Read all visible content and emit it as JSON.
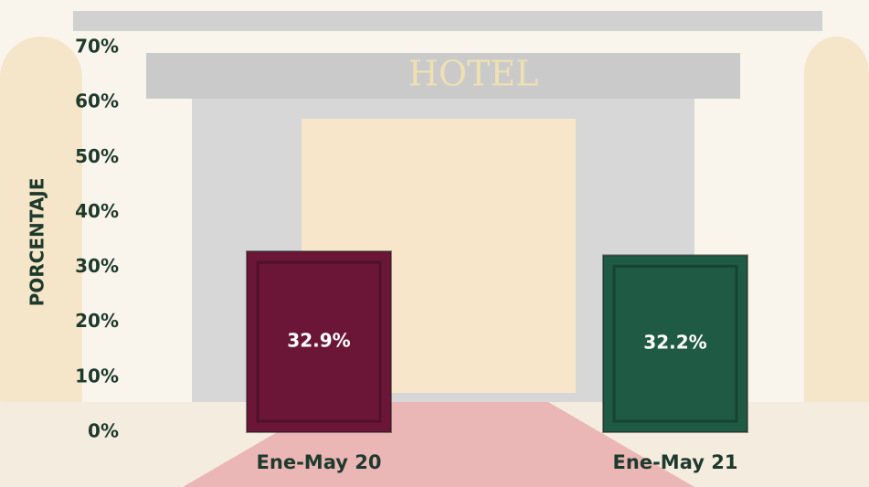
{
  "background": {
    "sign": "HOTEL"
  },
  "chart_data": {
    "type": "bar",
    "ylabel": "PORCENTAJE",
    "categories": [
      "Ene-May 20",
      "Ene-May 21"
    ],
    "values": [
      32.9,
      32.2
    ],
    "value_labels": [
      "32.9%",
      "32.2%"
    ],
    "colors": [
      "#6b1636",
      "#1f5a45"
    ],
    "ylim": [
      0,
      70
    ],
    "yticks": [
      {
        "value": 0,
        "label": "0%"
      },
      {
        "value": 10,
        "label": "10%"
      },
      {
        "value": 20,
        "label": "20%"
      },
      {
        "value": 30,
        "label": "30%"
      },
      {
        "value": 40,
        "label": "40%"
      },
      {
        "value": 50,
        "label": "50%"
      },
      {
        "value": 60,
        "label": "60%"
      },
      {
        "value": 70,
        "label": "70%"
      }
    ],
    "grid": false
  }
}
